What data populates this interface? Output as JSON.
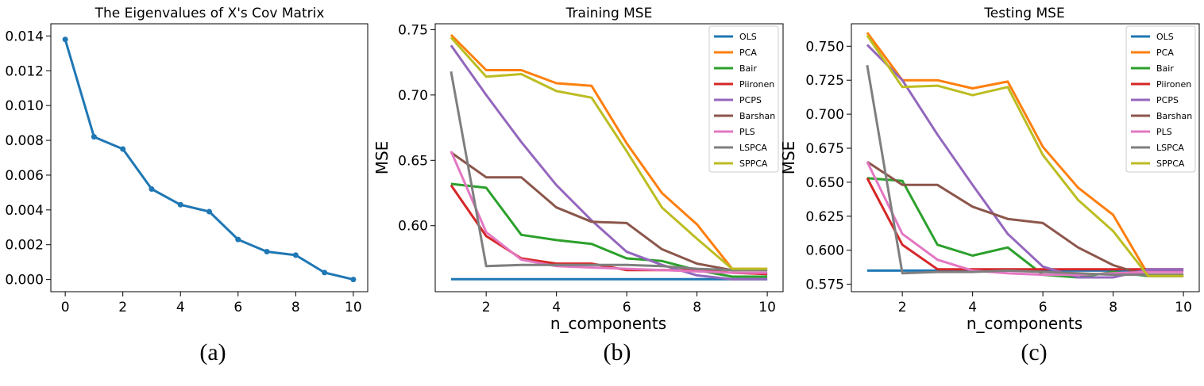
{
  "chart_data": [
    {
      "type": "line",
      "caption": "(a)",
      "title": "The Eigenvalues of X's Cov Matrix",
      "xlabel": "",
      "ylabel": "",
      "xlim": [
        -0.5,
        10.5
      ],
      "ylim": [
        -0.0007,
        0.0147
      ],
      "xticks": [
        0,
        2,
        4,
        6,
        8,
        10
      ],
      "yticks": [
        0.0,
        0.002,
        0.004,
        0.006,
        0.008,
        0.01,
        0.012,
        0.014
      ],
      "ytick_labels": [
        "0.000",
        "0.002",
        "0.004",
        "0.006",
        "0.008",
        "0.010",
        "0.012",
        "0.014"
      ],
      "grid": false,
      "markers": true,
      "x": [
        0,
        1,
        2,
        3,
        4,
        5,
        6,
        7,
        8,
        9,
        10
      ],
      "series": [
        {
          "color": "#1f77b4",
          "values": [
            0.0138,
            0.0082,
            0.0075,
            0.0052,
            0.0043,
            0.0039,
            0.0023,
            0.0016,
            0.0014,
            0.0004,
            0.0
          ]
        }
      ]
    },
    {
      "type": "line",
      "caption": "(b)",
      "title": "Training MSE",
      "xlabel": "n_components",
      "ylabel": "MSE",
      "xlim": [
        0.55,
        10.45
      ],
      "ylim": [
        0.5495,
        0.7545
      ],
      "xticks": [
        2,
        4,
        6,
        8,
        10
      ],
      "yticks": [
        0.6,
        0.65,
        0.7,
        0.75
      ],
      "ytick_labels": [
        "0.60",
        "0.65",
        "0.70",
        "0.75"
      ],
      "grid": false,
      "legend": "top-right",
      "x": [
        1,
        2,
        3,
        4,
        5,
        6,
        7,
        8,
        9,
        10
      ],
      "series": [
        {
          "name": "OLS",
          "color": "#1f77b4",
          "values": [
            0.559,
            0.559,
            0.559,
            0.559,
            0.559,
            0.559,
            0.559,
            0.559,
            0.559,
            0.559
          ]
        },
        {
          "name": "PCA",
          "color": "#ff7f0e",
          "values": [
            0.746,
            0.719,
            0.719,
            0.709,
            0.707,
            0.663,
            0.625,
            0.601,
            0.567,
            0.567
          ]
        },
        {
          "name": "Bair",
          "color": "#2ca02c",
          "values": [
            0.632,
            0.629,
            0.593,
            0.589,
            0.586,
            0.575,
            0.573,
            0.566,
            0.561,
            0.561
          ]
        },
        {
          "name": "Piironen",
          "color": "#d62728",
          "values": [
            0.631,
            0.592,
            0.575,
            0.571,
            0.571,
            0.566,
            0.566,
            0.566,
            0.564,
            0.563
          ]
        },
        {
          "name": "PCPS",
          "color": "#9467bd",
          "values": [
            0.738,
            0.7,
            0.664,
            0.631,
            0.604,
            0.58,
            0.57,
            0.562,
            0.559,
            0.559
          ]
        },
        {
          "name": "Barshan",
          "color": "#8c564b",
          "values": [
            0.656,
            0.637,
            0.637,
            0.614,
            0.603,
            0.602,
            0.582,
            0.571,
            0.566,
            0.566
          ]
        },
        {
          "name": "PLS",
          "color": "#e377c2",
          "values": [
            0.657,
            0.595,
            0.574,
            0.569,
            0.568,
            0.567,
            0.566,
            0.565,
            0.564,
            0.564
          ]
        },
        {
          "name": "LSPCA",
          "color": "#7f7f7f",
          "values": [
            0.718,
            0.569,
            0.57,
            0.57,
            0.57,
            0.57,
            0.569,
            0.567,
            0.566,
            0.566
          ]
        },
        {
          "name": "SPPCA",
          "color": "#bcbd22",
          "values": [
            0.744,
            0.714,
            0.716,
            0.703,
            0.698,
            0.657,
            0.614,
            0.59,
            0.567,
            0.567
          ]
        }
      ]
    },
    {
      "type": "line",
      "caption": "(c)",
      "title": "Testing MSE",
      "xlabel": "n_components",
      "ylabel": "MSE",
      "xlim": [
        0.55,
        10.45
      ],
      "ylim": [
        0.5695,
        0.7665
      ],
      "xticks": [
        2,
        4,
        6,
        8,
        10
      ],
      "yticks": [
        0.575,
        0.6,
        0.625,
        0.65,
        0.675,
        0.7,
        0.725,
        0.75
      ],
      "ytick_labels": [
        "0.575",
        "0.600",
        "0.625",
        "0.650",
        "0.675",
        "0.700",
        "0.725",
        "0.750"
      ],
      "grid": false,
      "legend": "top-right",
      "x": [
        1,
        2,
        3,
        4,
        5,
        6,
        7,
        8,
        9,
        10
      ],
      "series": [
        {
          "name": "OLS",
          "color": "#1f77b4",
          "values": [
            0.585,
            0.585,
            0.585,
            0.585,
            0.585,
            0.585,
            0.585,
            0.585,
            0.585,
            0.585
          ]
        },
        {
          "name": "PCA",
          "color": "#ff7f0e",
          "values": [
            0.76,
            0.725,
            0.725,
            0.719,
            0.724,
            0.676,
            0.646,
            0.626,
            0.582,
            0.582
          ]
        },
        {
          "name": "Bair",
          "color": "#2ca02c",
          "values": [
            0.653,
            0.651,
            0.604,
            0.596,
            0.602,
            0.582,
            0.58,
            0.584,
            0.581,
            0.581
          ]
        },
        {
          "name": "Piironen",
          "color": "#d62728",
          "values": [
            0.653,
            0.604,
            0.586,
            0.586,
            0.586,
            0.586,
            0.586,
            0.586,
            0.586,
            0.586
          ]
        },
        {
          "name": "PCPS",
          "color": "#9467bd",
          "values": [
            0.751,
            0.725,
            0.685,
            0.648,
            0.612,
            0.588,
            0.58,
            0.58,
            0.586,
            0.586
          ]
        },
        {
          "name": "Barshan",
          "color": "#8c564b",
          "values": [
            0.665,
            0.648,
            0.648,
            0.632,
            0.623,
            0.62,
            0.602,
            0.589,
            0.581,
            0.581
          ]
        },
        {
          "name": "PLS",
          "color": "#e377c2",
          "values": [
            0.665,
            0.612,
            0.593,
            0.585,
            0.583,
            0.582,
            0.582,
            0.583,
            0.584,
            0.584
          ]
        },
        {
          "name": "LSPCA",
          "color": "#7f7f7f",
          "values": [
            0.736,
            0.583,
            0.584,
            0.584,
            0.585,
            0.584,
            0.583,
            0.582,
            0.582,
            0.582
          ]
        },
        {
          "name": "SPPCA",
          "color": "#bcbd22",
          "values": [
            0.758,
            0.72,
            0.721,
            0.714,
            0.72,
            0.67,
            0.637,
            0.614,
            0.581,
            0.581
          ]
        }
      ]
    }
  ]
}
